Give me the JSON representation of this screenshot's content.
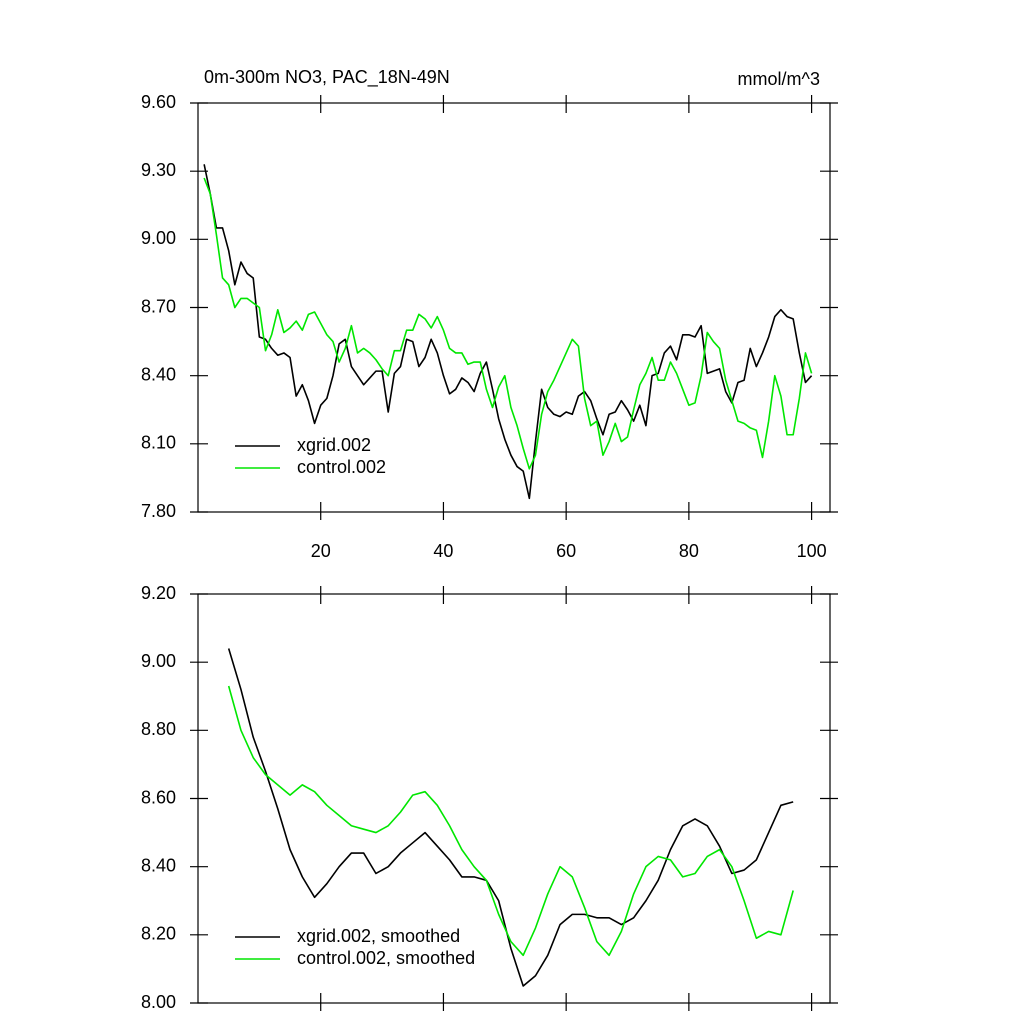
{
  "chart_data": [
    {
      "type": "line",
      "title": "0m-300m NO3, PAC_18N-49N",
      "units": "mmol/m^3",
      "x": [
        1,
        2,
        3,
        4,
        5,
        6,
        7,
        8,
        9,
        10,
        11,
        12,
        13,
        14,
        15,
        16,
        17,
        18,
        19,
        20,
        21,
        22,
        23,
        24,
        25,
        26,
        27,
        28,
        29,
        30,
        31,
        32,
        33,
        34,
        35,
        36,
        37,
        38,
        39,
        40,
        41,
        42,
        43,
        44,
        45,
        46,
        47,
        48,
        49,
        50,
        51,
        52,
        53,
        54,
        55,
        56,
        57,
        58,
        59,
        60,
        61,
        62,
        63,
        64,
        65,
        66,
        67,
        68,
        69,
        70,
        71,
        72,
        73,
        74,
        75,
        76,
        77,
        78,
        79,
        80,
        81,
        82,
        83,
        84,
        85,
        86,
        87,
        88,
        89,
        90,
        91,
        92,
        93,
        94,
        95,
        96,
        97,
        98,
        99,
        100
      ],
      "series": [
        {
          "name": "xgrid.002",
          "color": "#000000",
          "values": [
            9.33,
            9.2,
            9.05,
            9.05,
            8.95,
            8.8,
            8.9,
            8.85,
            8.83,
            8.57,
            8.56,
            8.52,
            8.49,
            8.5,
            8.48,
            8.31,
            8.36,
            8.29,
            8.19,
            8.27,
            8.3,
            8.4,
            8.54,
            8.56,
            8.44,
            8.4,
            8.36,
            8.39,
            8.42,
            8.42,
            8.24,
            8.41,
            8.44,
            8.56,
            8.55,
            8.44,
            8.48,
            8.56,
            8.5,
            8.4,
            8.32,
            8.34,
            8.39,
            8.37,
            8.33,
            8.41,
            8.46,
            8.34,
            8.21,
            8.12,
            8.05,
            8.0,
            7.98,
            7.86,
            8.11,
            8.34,
            8.26,
            8.23,
            8.22,
            8.24,
            8.23,
            8.31,
            8.33,
            8.29,
            8.21,
            8.14,
            8.23,
            8.24,
            8.29,
            8.25,
            8.2,
            8.27,
            8.18,
            8.4,
            8.41,
            8.5,
            8.53,
            8.47,
            8.58,
            8.58,
            8.57,
            8.62,
            8.41,
            8.42,
            8.43,
            8.33,
            8.28,
            8.37,
            8.38,
            8.52,
            8.44,
            8.5,
            8.57,
            8.66,
            8.69,
            8.66,
            8.65,
            8.5,
            8.37,
            8.4
          ]
        },
        {
          "name": "control.002",
          "color": "#00e600",
          "values": [
            9.27,
            9.2,
            9.02,
            8.83,
            8.8,
            8.7,
            8.74,
            8.74,
            8.72,
            8.7,
            8.51,
            8.58,
            8.69,
            8.59,
            8.61,
            8.64,
            8.6,
            8.67,
            8.68,
            8.63,
            8.58,
            8.55,
            8.46,
            8.52,
            8.62,
            8.5,
            8.52,
            8.5,
            8.47,
            8.43,
            8.4,
            8.51,
            8.51,
            8.6,
            8.6,
            8.67,
            8.65,
            8.61,
            8.66,
            8.6,
            8.52,
            8.5,
            8.5,
            8.45,
            8.46,
            8.46,
            8.34,
            8.26,
            8.35,
            8.4,
            8.26,
            8.18,
            8.08,
            7.99,
            8.05,
            8.23,
            8.33,
            8.38,
            8.44,
            8.5,
            8.56,
            8.53,
            8.3,
            8.18,
            8.2,
            8.05,
            8.11,
            8.19,
            8.11,
            8.13,
            8.25,
            8.36,
            8.41,
            8.48,
            8.38,
            8.38,
            8.46,
            8.41,
            8.34,
            8.27,
            8.28,
            8.4,
            8.59,
            8.55,
            8.52,
            8.38,
            8.29,
            8.2,
            8.19,
            8.17,
            8.16,
            8.04,
            8.2,
            8.4,
            8.31,
            8.14,
            8.14,
            8.3,
            8.5,
            8.41
          ]
        }
      ],
      "xlim": [
        0,
        103
      ],
      "xticks": [
        20,
        40,
        60,
        80,
        100
      ],
      "show_xtick_labels": true,
      "ylim": [
        7.8,
        9.6
      ],
      "yticks": [
        {
          "value": 7.8,
          "label": "7.80"
        },
        {
          "value": 8.1,
          "label": "8.10"
        },
        {
          "value": 8.4,
          "label": "8.40"
        },
        {
          "value": 8.7,
          "label": "8.70"
        },
        {
          "value": 9.0,
          "label": "9.00"
        },
        {
          "value": 9.3,
          "label": "9.30"
        },
        {
          "value": 9.6,
          "label": "9.60"
        }
      ],
      "legend": "lower left"
    },
    {
      "type": "line",
      "x": [
        5,
        7,
        9,
        11,
        13,
        15,
        17,
        19,
        21,
        23,
        25,
        27,
        29,
        31,
        33,
        35,
        37,
        39,
        41,
        43,
        45,
        47,
        49,
        51,
        53,
        55,
        57,
        59,
        61,
        63,
        65,
        67,
        69,
        71,
        73,
        75,
        77,
        79,
        81,
        83,
        85,
        87,
        89,
        91,
        93,
        95,
        97
      ],
      "series": [
        {
          "name": "xgrid.002, smoothed",
          "color": "#000000",
          "values": [
            9.04,
            8.92,
            8.78,
            8.68,
            8.57,
            8.45,
            8.37,
            8.31,
            8.35,
            8.4,
            8.44,
            8.44,
            8.38,
            8.4,
            8.44,
            8.47,
            8.5,
            8.46,
            8.42,
            8.37,
            8.37,
            8.36,
            8.3,
            8.16,
            8.05,
            8.08,
            8.14,
            8.23,
            8.26,
            8.26,
            8.25,
            8.25,
            8.23,
            8.25,
            8.3,
            8.36,
            8.45,
            8.52,
            8.54,
            8.52,
            8.46,
            8.38,
            8.39,
            8.42,
            8.5,
            8.58,
            8.59
          ]
        },
        {
          "name": "control.002, smoothed",
          "color": "#00e600",
          "values": [
            8.93,
            8.8,
            8.72,
            8.67,
            8.64,
            8.61,
            8.64,
            8.62,
            8.58,
            8.55,
            8.52,
            8.51,
            8.5,
            8.52,
            8.56,
            8.61,
            8.62,
            8.58,
            8.52,
            8.45,
            8.4,
            8.36,
            8.26,
            8.18,
            8.14,
            8.22,
            8.32,
            8.4,
            8.37,
            8.28,
            8.18,
            8.14,
            8.21,
            8.32,
            8.4,
            8.43,
            8.42,
            8.37,
            8.38,
            8.43,
            8.45,
            8.4,
            8.3,
            8.19,
            8.21,
            8.2,
            8.33
          ]
        }
      ],
      "xlim": [
        0,
        103
      ],
      "xticks": [
        20,
        40,
        60,
        80,
        100
      ],
      "show_xtick_labels": false,
      "ylim": [
        8.0,
        9.2
      ],
      "yticks": [
        {
          "value": 8.0,
          "label": "8.00"
        },
        {
          "value": 8.2,
          "label": "8.20"
        },
        {
          "value": 8.4,
          "label": "8.40"
        },
        {
          "value": 8.6,
          "label": "8.60"
        },
        {
          "value": 8.8,
          "label": "8.80"
        },
        {
          "value": 9.0,
          "label": "9.00"
        },
        {
          "value": 9.2,
          "label": "9.20"
        }
      ],
      "legend": "lower left"
    }
  ]
}
